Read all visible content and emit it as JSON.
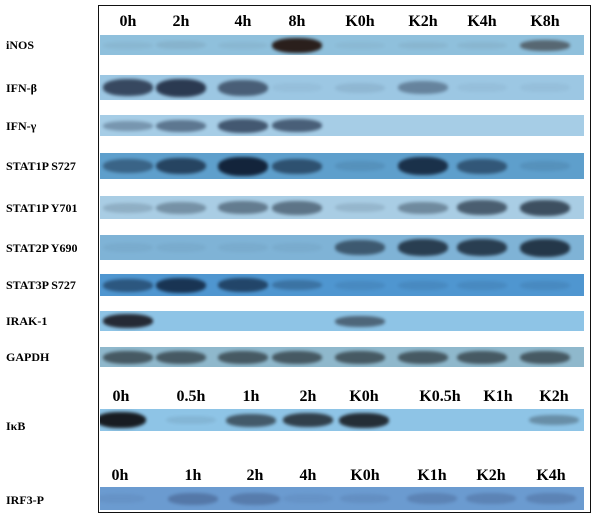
{
  "figure": {
    "panel_a": {
      "lanes": [
        "0h",
        "2h",
        "4h",
        "8h",
        "K0h",
        "K2h",
        "K4h",
        "K8h"
      ],
      "rows": [
        {
          "label": "iNOS",
          "strip_color": "#8fc0dc",
          "band_color": "#2a1f1c",
          "intensity": [
            0.05,
            0.08,
            0.05,
            1.0,
            0.04,
            0.06,
            0.06,
            0.55
          ]
        },
        {
          "label": "IFN-β",
          "strip_color": "#9cc7e3",
          "band_color": "#26334a",
          "intensity": [
            0.85,
            0.95,
            0.7,
            0.05,
            0.1,
            0.45,
            0.05,
            0.05
          ]
        },
        {
          "label": "IFN-γ",
          "strip_color": "#a6cde6",
          "band_color": "#22314a",
          "intensity": [
            0.35,
            0.55,
            0.75,
            0.7,
            0.0,
            0.0,
            0.0,
            0.0
          ]
        },
        {
          "label": "STAT1P S727",
          "strip_color": "#5e9fcc",
          "band_color": "#0f1e34",
          "intensity": [
            0.45,
            0.7,
            0.95,
            0.6,
            0.1,
            0.85,
            0.55,
            0.1
          ]
        },
        {
          "label": "STAT1P Y701",
          "strip_color": "#a9cde4",
          "band_color": "#2b3a4a",
          "intensity": [
            0.2,
            0.4,
            0.55,
            0.6,
            0.15,
            0.45,
            0.75,
            0.85
          ]
        },
        {
          "label": "STAT2P Y690",
          "strip_color": "#7fb3d6",
          "band_color": "#1b2a3a",
          "intensity": [
            0.05,
            0.05,
            0.05,
            0.05,
            0.65,
            0.85,
            0.85,
            0.9
          ]
        },
        {
          "label": "STAT3P S727",
          "strip_color": "#4f96d0",
          "band_color": "#10243e",
          "intensity": [
            0.55,
            0.85,
            0.7,
            0.3,
            0.1,
            0.1,
            0.1,
            0.1
          ]
        },
        {
          "label": "IRAK-1",
          "strip_color": "#8ec4e6",
          "band_color": "#1a1a22",
          "intensity": [
            0.9,
            0.0,
            0.0,
            0.0,
            0.55,
            0.0,
            0.0,
            0.0
          ]
        },
        {
          "label": "GAPDH",
          "strip_color": "#8fb8cc",
          "band_color": "#2e3a40",
          "intensity": [
            0.75,
            0.75,
            0.75,
            0.75,
            0.75,
            0.75,
            0.75,
            0.75
          ]
        }
      ]
    },
    "panel_b": {
      "lanes": [
        "0h",
        "0.5h",
        "1h",
        "2h",
        "K0h",
        "K0.5h",
        "K1h",
        "K2h"
      ],
      "rows": [
        {
          "label": "IκB",
          "strip_color": "#8ec4e6",
          "band_color": "#121418",
          "intensity": [
            0.95,
            0.08,
            0.6,
            0.75,
            0.85,
            0.0,
            0.0,
            0.3
          ]
        }
      ]
    },
    "panel_c": {
      "lanes": [
        "0h",
        "1h",
        "2h",
        "4h",
        "K0h",
        "K1h",
        "K2h",
        "K4h"
      ],
      "rows": [
        {
          "label": "IRF3-P",
          "strip_color": "#6b9bd0",
          "band_color": "#3a4e78",
          "intensity": [
            0.1,
            0.45,
            0.4,
            0.1,
            0.15,
            0.3,
            0.3,
            0.3
          ]
        }
      ]
    }
  }
}
